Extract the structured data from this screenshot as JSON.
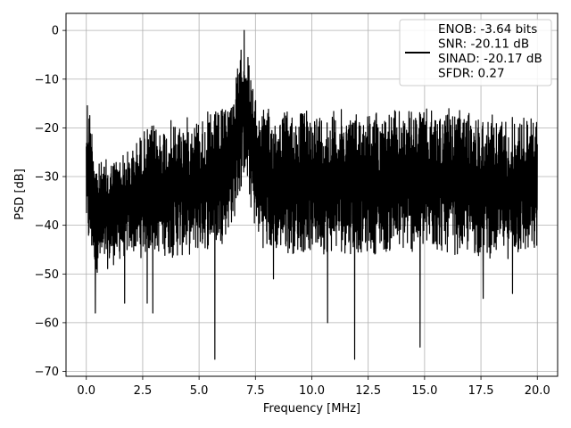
{
  "chart_data": {
    "type": "line",
    "xlabel": "Frequency [MHz]",
    "ylabel": "PSD [dB]",
    "xlim": [
      -0.9,
      20.9
    ],
    "ylim": [
      -71,
      3.5
    ],
    "xticks": [
      0.0,
      2.5,
      5.0,
      7.5,
      10.0,
      12.5,
      15.0,
      17.5,
      20.0
    ],
    "xtick_labels": [
      "0.0",
      "2.5",
      "5.0",
      "7.5",
      "10.0",
      "12.5",
      "15.0",
      "17.5",
      "20.0"
    ],
    "yticks": [
      0,
      -10,
      -20,
      -30,
      -40,
      -50,
      -60,
      -70
    ],
    "ytick_labels": [
      "0",
      "−10",
      "−20",
      "−30",
      "−40",
      "−50",
      "−60",
      "−70"
    ],
    "grid": true,
    "legend_position": "top-right",
    "line_color": "#000000",
    "series": [
      {
        "name": "ENOB: -3.64 bits\nSNR: -20.11 dB\nSINAD: -20.17 dB\nSFDR: 0.27",
        "legend_lines": [
          "ENOB: -3.64 bits",
          "SNR: -20.11 dB",
          "SINAD: -20.17 dB",
          "SFDR: 0.27"
        ],
        "envelope": {
          "x": [
            0.0,
            0.05,
            0.5,
            1.0,
            2.0,
            2.5,
            3.0,
            4.0,
            5.0,
            6.0,
            6.5,
            6.8,
            7.0,
            7.2,
            7.5,
            8.0,
            9.0,
            10.0,
            12.0,
            14.0,
            16.0,
            18.0,
            20.0
          ],
          "upper": [
            -15,
            -11,
            -27,
            -26,
            -24,
            -20,
            -19,
            -18,
            -17,
            -16,
            -12,
            -5,
            0,
            -5,
            -14,
            -16,
            -16,
            -16,
            -16,
            -16,
            -16,
            -17,
            -17
          ],
          "lower": [
            -42,
            -46,
            -50,
            -49,
            -46,
            -47,
            -46,
            -47,
            -46,
            -44,
            -40,
            -35,
            -30,
            -35,
            -42,
            -46,
            -46,
            -46,
            -46,
            -46,
            -46,
            -47,
            -47
          ]
        },
        "dips": [
          {
            "x": 0.4,
            "y": -58
          },
          {
            "x": 1.7,
            "y": -56
          },
          {
            "x": 2.7,
            "y": -56
          },
          {
            "x": 2.95,
            "y": -58
          },
          {
            "x": 5.7,
            "y": -67.5
          },
          {
            "x": 8.3,
            "y": -51
          },
          {
            "x": 10.7,
            "y": -60
          },
          {
            "x": 11.9,
            "y": -67.5
          },
          {
            "x": 14.8,
            "y": -65
          },
          {
            "x": 17.6,
            "y": -55
          },
          {
            "x": 18.9,
            "y": -54
          }
        ],
        "peak": {
          "x": 7.0,
          "y": 0
        }
      }
    ]
  }
}
